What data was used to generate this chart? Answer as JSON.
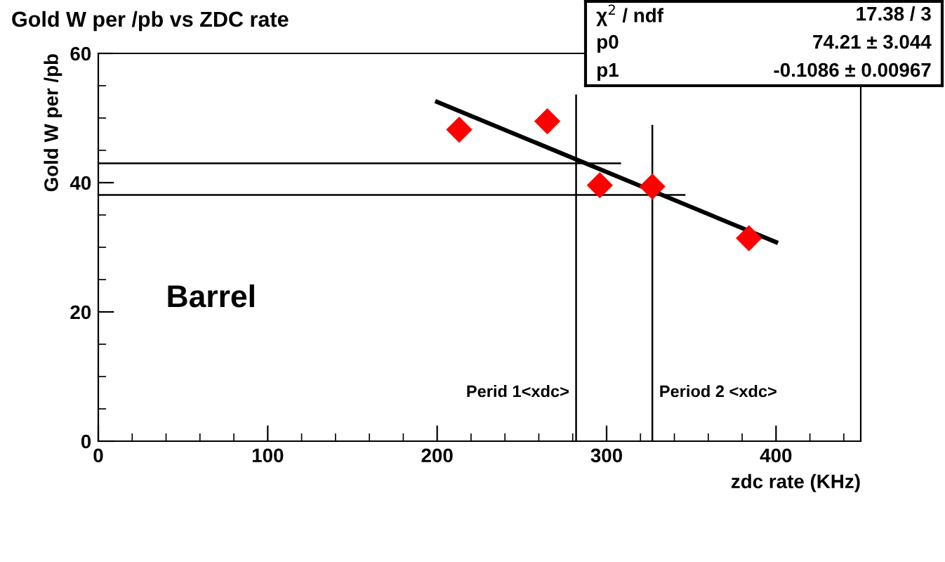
{
  "chart_data": {
    "type": "scatter",
    "title": "Gold W per /pb vs ZDC rate",
    "xlabel": "zdc rate (KHz)",
    "ylabel": "Gold W per /pb",
    "xlim": [
      0,
      450
    ],
    "ylim": [
      0,
      60
    ],
    "xticks": [
      0,
      100,
      200,
      300,
      400
    ],
    "yticks": [
      0,
      20,
      40,
      60
    ],
    "grid": false,
    "series": [
      {
        "marker": "diamond",
        "color": "#ff0000",
        "x": [
          213,
          265,
          296,
          327,
          384
        ],
        "values": [
          48.2,
          49.5,
          39.6,
          39.4,
          31.4
        ]
      },
      {
        "type": "line",
        "color": "#000000",
        "x": [
          200,
          400
        ],
        "values": [
          52.5,
          30.8
        ]
      },
      {
        "type": "line",
        "color": "#000000",
        "x": [
          0,
          308
        ],
        "values": [
          43.0,
          43.0
        ]
      },
      {
        "type": "line",
        "color": "#000000",
        "x": [
          0,
          346
        ],
        "values": [
          38.1,
          38.1
        ]
      },
      {
        "type": "line",
        "color": "#000000",
        "x": [
          282,
          282
        ],
        "values": [
          0,
          53.5
        ]
      },
      {
        "type": "line",
        "color": "#000000",
        "x": [
          327,
          327
        ],
        "values": [
          0,
          48.8
        ]
      }
    ],
    "annotations": [
      "χ$^{2}$ / ndf",
      "17.38 / 3",
      "p0",
      "74.21 ± 3.044",
      "p1",
      "-0.1086 ± 0.00967",
      "Barrel",
      "Perid 1<xdc>",
      "Period 2 <xdc>"
    ]
  }
}
